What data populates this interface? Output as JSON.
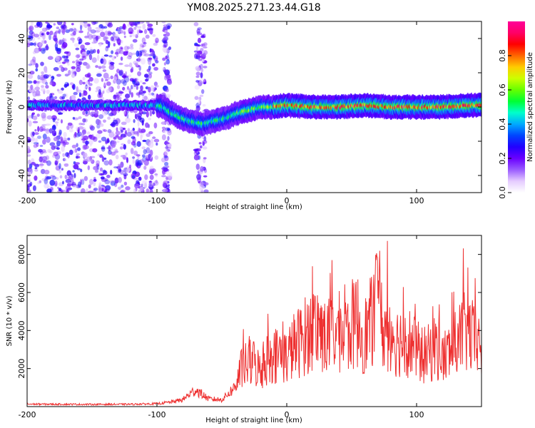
{
  "title": "YM08.2025.271.23.44.G18",
  "chart_data": [
    {
      "type": "heatmap",
      "xlabel": "Height of straight line (km)",
      "ylabel": "Frequency (Hz)",
      "xlim": [
        -200,
        150
      ],
      "ylim": [
        -50,
        50
      ],
      "xticks": [
        "-200",
        "-100",
        "0",
        "100"
      ],
      "yticks": [
        "-40",
        "-20",
        "0",
        "20",
        "40"
      ],
      "colorbar": {
        "label": "Normalized spectral amplitude",
        "range": [
          0,
          1
        ],
        "ticks": [
          "0.0",
          "0.2",
          "0.4",
          "0.6",
          "0.8"
        ],
        "colors": [
          "#ffffff",
          "#e5ccff",
          "#9a5cff",
          "#6a00ff",
          "#2200ff",
          "#0044ff",
          "#00aaff",
          "#00ffcc",
          "#00ff33",
          "#66ff00",
          "#ccff00",
          "#ffcc00",
          "#ff6600",
          "#ff0000",
          "#ff0066",
          "#ff0099"
        ]
      },
      "ridge_center_hz": [
        [
          -100,
          1
        ],
        [
          -95,
          0
        ],
        [
          -90,
          -3
        ],
        [
          -85,
          -5
        ],
        [
          -80,
          -7
        ],
        [
          -75,
          -8
        ],
        [
          -70,
          -9
        ],
        [
          -65,
          -10
        ],
        [
          -60,
          -9
        ],
        [
          -55,
          -8
        ],
        [
          -50,
          -7
        ],
        [
          -45,
          -6
        ],
        [
          -40,
          -4
        ],
        [
          -30,
          -2
        ],
        [
          -20,
          0
        ],
        [
          -10,
          0
        ],
        [
          0,
          1
        ],
        [
          20,
          0
        ],
        [
          40,
          0
        ],
        [
          60,
          1
        ],
        [
          80,
          0
        ],
        [
          100,
          0
        ],
        [
          120,
          0
        ],
        [
          140,
          1
        ],
        [
          150,
          1
        ]
      ]
    },
    {
      "type": "line",
      "xlabel": "Height of straight line (km)",
      "ylabel": "SNR (10 * v/v)",
      "xlim": [
        -200,
        150
      ],
      "ylim": [
        0,
        9000
      ],
      "xticks": [
        "-200",
        "-100",
        "0",
        "100"
      ],
      "yticks": [
        "2000",
        "4000",
        "6000",
        "8000"
      ],
      "series": [
        {
          "name": "SNR",
          "color": "#ee3030",
          "envelope_x": [
            -200,
            -150,
            -120,
            -100,
            -90,
            -80,
            -75,
            -70,
            -60,
            -50,
            -40,
            -35,
            -30,
            -25,
            -20,
            -15,
            -10,
            -5,
            0,
            5,
            10,
            15,
            20,
            25,
            30,
            35,
            40,
            45,
            50,
            55,
            60,
            65,
            70,
            75,
            80,
            85,
            90,
            95,
            100,
            105,
            110,
            115,
            120,
            125,
            130,
            135,
            140,
            145,
            150
          ],
          "envelope_y": [
            180,
            160,
            170,
            210,
            320,
            500,
            900,
            1200,
            550,
            500,
            1400,
            2800,
            3200,
            3300,
            2600,
            3600,
            3800,
            4000,
            3700,
            4500,
            4900,
            5400,
            5800,
            6100,
            5000,
            5500,
            5600,
            5100,
            6100,
            6400,
            5300,
            6300,
            7300,
            5600,
            5900,
            4900,
            5100,
            4800,
            4200,
            3800,
            4000,
            4600,
            3600,
            4100,
            4600,
            5400,
            5600,
            4800,
            4600
          ]
        }
      ]
    }
  ]
}
